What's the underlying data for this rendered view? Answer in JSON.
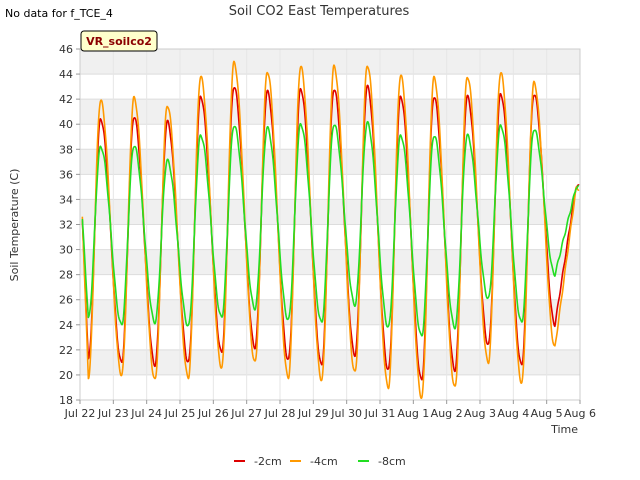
{
  "header": {
    "no_data_note": "No data for f_TCE_4"
  },
  "badge": {
    "label": "VR_soilco2",
    "bg": "#ffffcc",
    "border": "#000000",
    "text_color": "#8b0000"
  },
  "chart_data": {
    "type": "line",
    "title": "Soil CO2 East Temperatures",
    "xlabel": "Time",
    "ylabel": "Soil Temperature (C)",
    "xlim": [
      "Jul 22",
      "Aug 6"
    ],
    "ylim": [
      18,
      46
    ],
    "yticks": [
      18,
      20,
      22,
      24,
      26,
      28,
      30,
      32,
      34,
      36,
      38,
      40,
      42,
      44,
      46
    ],
    "xticks": [
      "Jul 22",
      "Jul 23",
      "Jul 24",
      "Jul 25",
      "Jul 26",
      "Jul 27",
      "Jul 28",
      "Jul 29",
      "Jul 30",
      "Jul 31",
      "Aug 1",
      "Aug 2",
      "Aug 3",
      "Aug 4",
      "Aug 5",
      "Aug 6"
    ],
    "grid": true,
    "legend_position": "bottom",
    "series": [
      {
        "name": "-2cm",
        "color": "#dd0000",
        "daily_min": [
          21.2,
          21.0,
          20.8,
          21.0,
          21.8,
          22.2,
          21.2,
          20.8,
          21.6,
          20.4,
          19.6,
          20.4,
          22.4,
          20.8,
          24.0
        ],
        "daily_max": [
          40.4,
          40.6,
          40.2,
          42.2,
          43.0,
          42.6,
          42.8,
          42.8,
          43.0,
          42.2,
          42.2,
          42.2,
          42.4,
          42.4
        ]
      },
      {
        "name": "-4cm",
        "color": "#ff9900",
        "daily_min": [
          19.8,
          20.0,
          19.6,
          19.8,
          20.6,
          21.0,
          19.8,
          19.6,
          20.2,
          19.0,
          18.2,
          19.0,
          21.0,
          19.4,
          22.2
        ],
        "daily_max": [
          41.9,
          42.1,
          41.5,
          43.8,
          44.9,
          44.2,
          44.6,
          44.6,
          44.7,
          43.9,
          43.7,
          43.8,
          44.1,
          43.3
        ]
      },
      {
        "name": "-8cm",
        "color": "#22dd22",
        "daily_min": [
          24.5,
          24.0,
          24.2,
          23.9,
          24.6,
          25.3,
          24.4,
          24.2,
          25.6,
          23.8,
          23.1,
          23.8,
          26.1,
          24.2,
          28.0
        ],
        "daily_max": [
          38.2,
          38.3,
          37.1,
          39.1,
          39.9,
          39.7,
          40.0,
          40.0,
          40.1,
          39.1,
          39.1,
          39.1,
          39.9,
          39.6
        ]
      }
    ]
  }
}
